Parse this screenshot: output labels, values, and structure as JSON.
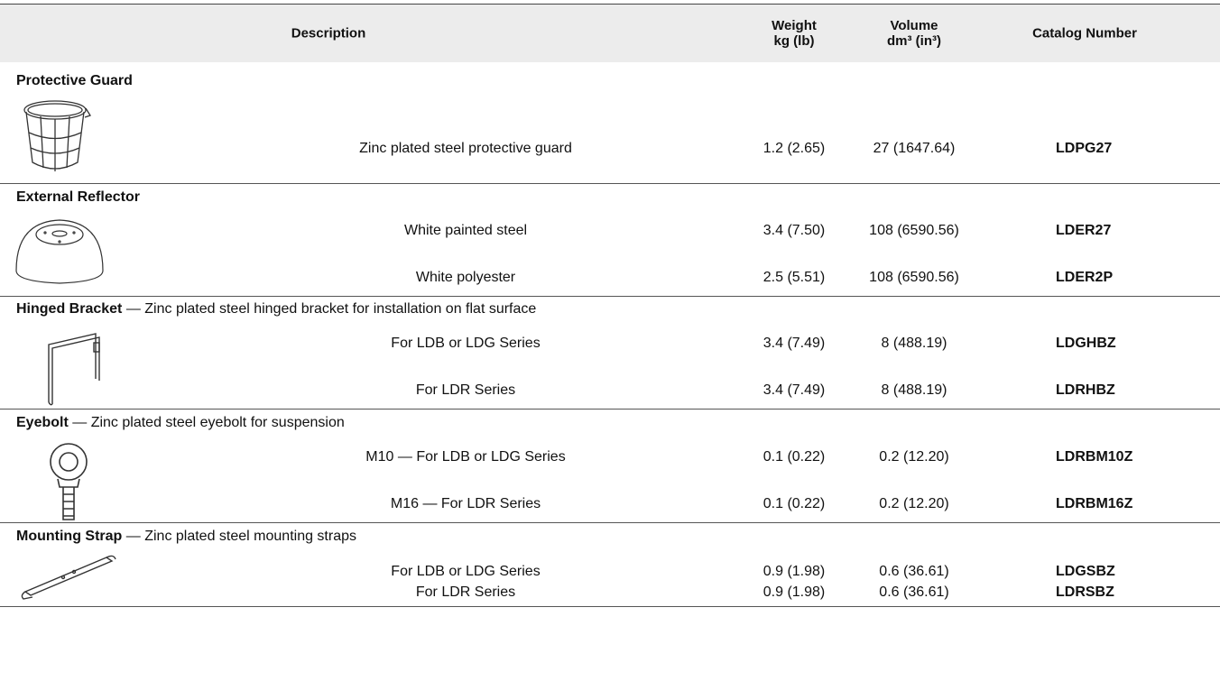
{
  "header": {
    "description": "Description",
    "weight": [
      "Weight",
      "kg (lb)"
    ],
    "volume": [
      "Volume",
      "dm³ (in³)"
    ],
    "catalog": "Catalog Number"
  },
  "sections": [
    {
      "name": "Protective Guard",
      "items": [
        {
          "description": "Zinc plated steel protective guard",
          "weight": "1.2 (2.65)",
          "volume": "27 (1647.64)",
          "catalog": "LDPG27"
        }
      ]
    },
    {
      "name": "External Reflector",
      "items": [
        {
          "description": "White painted steel",
          "weight": "3.4 (7.50)",
          "volume": "108 (6590.56)",
          "catalog": "LDER27"
        },
        {
          "description": "White polyester",
          "weight": "2.5 (5.51)",
          "volume": "108 (6590.56)",
          "catalog": "LDER2P"
        }
      ]
    },
    {
      "name": "Hinged Bracket",
      "note": "— Zinc plated steel hinged bracket for installation on flat surface",
      "items": [
        {
          "description": "For LDB or LDG Series",
          "weight": "3.4 (7.49)",
          "volume": "8 (488.19)",
          "catalog": "LDGHBZ"
        },
        {
          "description": "For LDR Series",
          "weight": "3.4 (7.49)",
          "volume": "8 (488.19)",
          "catalog": "LDRHBZ"
        }
      ]
    },
    {
      "name": "Eyebolt",
      "note": "— Zinc plated steel eyebolt for suspension",
      "items": [
        {
          "description": "M10 — For LDB or LDG Series",
          "weight": "0.1 (0.22)",
          "volume": "0.2 (12.20)",
          "catalog": "LDRBM10Z"
        },
        {
          "description": "M16 — For LDR Series",
          "weight": "0.1 (0.22)",
          "volume": "0.2 (12.20)",
          "catalog": "LDRBM16Z"
        }
      ]
    },
    {
      "name": "Mounting Strap",
      "note": "— Zinc plated steel mounting straps",
      "items": [
        {
          "description": "For LDB or LDG Series",
          "weight": "0.9 (1.98)",
          "volume": "0.6 (36.61)",
          "catalog": "LDGSBZ"
        },
        {
          "description": "For LDR Series",
          "weight": "0.9 (1.98)",
          "volume": "0.6 (36.61)",
          "catalog": "LDRSBZ"
        }
      ]
    }
  ]
}
